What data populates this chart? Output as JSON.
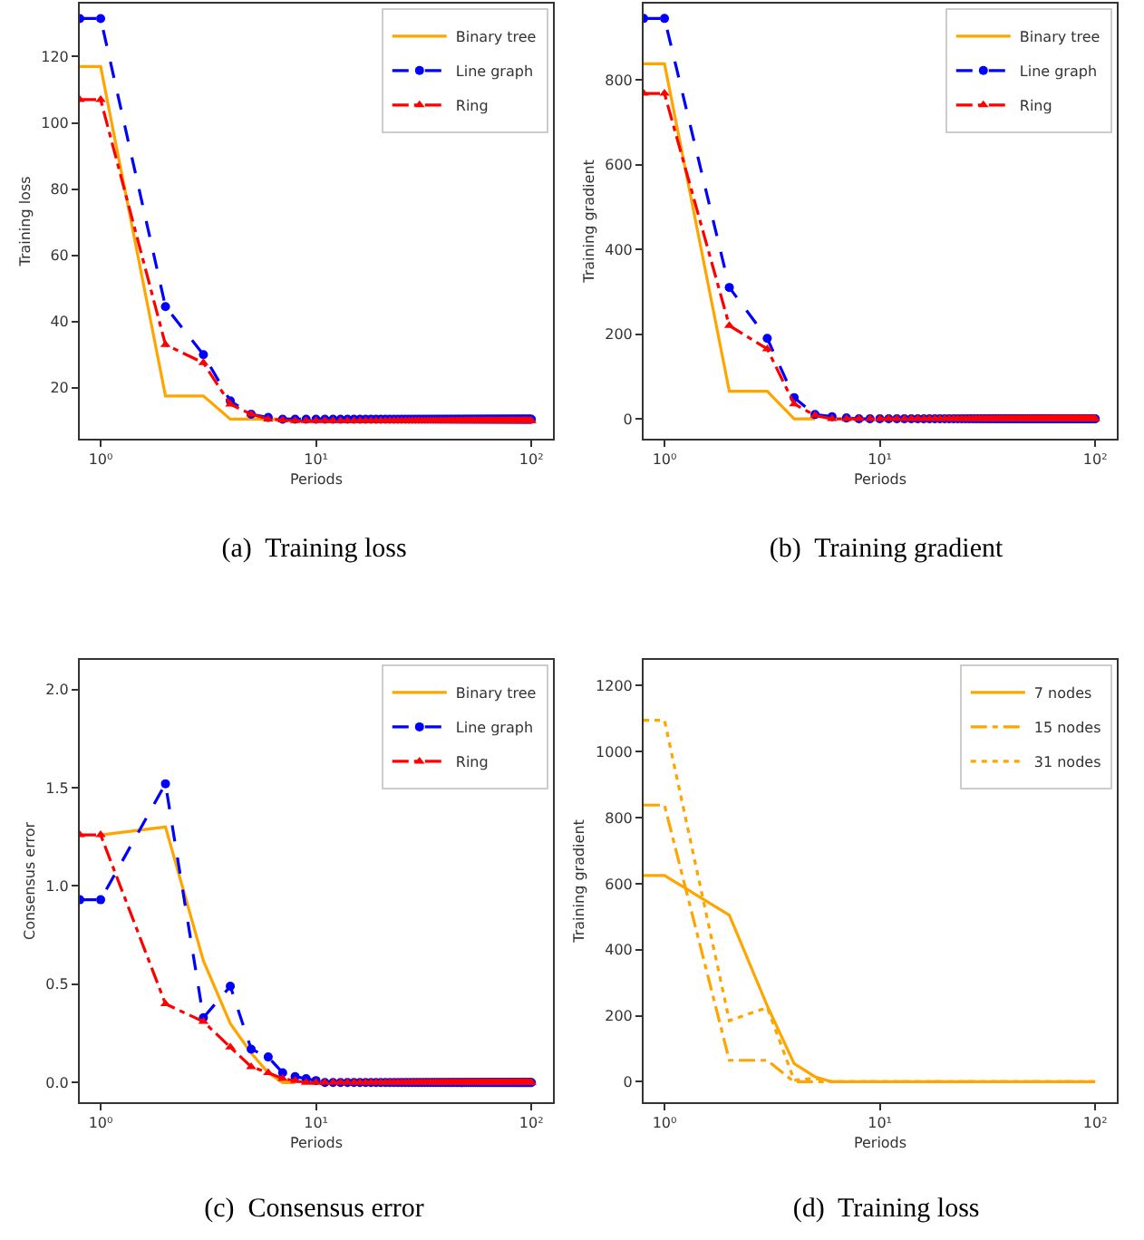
{
  "chart_data": [
    {
      "type": "line",
      "title": "(a)  Training loss",
      "xlabel": "Periods",
      "ylabel": "Training loss",
      "log": "x",
      "grid": false,
      "legend": "top right",
      "xlim": [
        0.8,
        126
      ],
      "xticks": [
        {
          "value": 1,
          "label": "10⁰"
        },
        {
          "value": 10,
          "label": "10¹"
        },
        {
          "value": 100,
          "label": "10²"
        }
      ],
      "ylim": [
        4.6,
        136
      ],
      "yticks": [
        20,
        40,
        60,
        80,
        100,
        120
      ],
      "x": [
        0.8,
        1,
        2,
        3,
        4,
        5,
        6,
        7,
        8,
        9,
        10,
        11,
        12,
        13,
        14,
        15,
        16,
        17,
        18,
        19,
        20,
        21,
        22,
        23,
        24,
        25,
        26,
        27,
        28,
        29,
        30,
        31,
        32,
        33,
        34,
        35,
        36,
        37,
        38,
        39,
        40,
        41,
        42,
        43,
        44,
        45,
        46,
        47,
        48,
        49,
        50,
        51,
        52,
        53,
        54,
        55,
        56,
        57,
        58,
        59,
        60,
        61,
        62,
        63,
        64,
        65,
        66,
        67,
        68,
        69,
        70,
        71,
        72,
        73,
        74,
        75,
        76,
        77,
        78,
        79,
        80,
        81,
        82,
        83,
        84,
        85,
        86,
        87,
        88,
        89,
        90,
        91,
        92,
        93,
        94,
        95,
        96,
        97,
        98,
        99,
        100
      ],
      "series": [
        {
          "name": "Binary tree",
          "color": "#ffa500",
          "line_style": "solid",
          "marker": "none",
          "x": [
            0.8,
            1,
            2,
            3,
            4,
            5,
            6,
            7,
            8
          ],
          "values": [
            117,
            117,
            17.5,
            17.5,
            10.5,
            10.5,
            10.5,
            10.5,
            10.5
          ]
        },
        {
          "name": "Line graph",
          "color": "#0000ff",
          "line_style": "dashed",
          "marker": "circle",
          "values": [
            131.5,
            131.5,
            44.5,
            30,
            16,
            12,
            11,
            10.5,
            10.5,
            10.5,
            10.5,
            10.5,
            10.5,
            10.5,
            10.5,
            10.5,
            10.5,
            10.5,
            10.5,
            10.5,
            10.5,
            10.5,
            10.5,
            10.5,
            10.5,
            10.5,
            10.5,
            10.5,
            10.5,
            10.5,
            10.5,
            10.5,
            10.5,
            10.5,
            10.5,
            10.5,
            10.5,
            10.5,
            10.5,
            10.5,
            10.5,
            10.5,
            10.5,
            10.5,
            10.5,
            10.5,
            10.5,
            10.5,
            10.5,
            10.5,
            10.5,
            10.5,
            10.5,
            10.5,
            10.5,
            10.5,
            10.5,
            10.5,
            10.5,
            10.5,
            10.5,
            10.5,
            10.5,
            10.5,
            10.5,
            10.5,
            10.5,
            10.5,
            10.5,
            10.5,
            10.5,
            10.5,
            10.5,
            10.5,
            10.5,
            10.5,
            10.5,
            10.5,
            10.5,
            10.5,
            10.5,
            10.5,
            10.5,
            10.5,
            10.5,
            10.5,
            10.5,
            10.5,
            10.5,
            10.5,
            10.5,
            10.5,
            10.5,
            10.5,
            10.5,
            10.5,
            10.5,
            10.5,
            10.5,
            10.5,
            10.5
          ]
        },
        {
          "name": "Ring",
          "color": "#ff0000",
          "line_style": "dashdot",
          "marker": "triangle",
          "values": [
            107,
            107,
            33,
            27.5,
            15,
            12,
            10.5,
            10.2,
            10,
            10,
            10,
            10,
            10,
            10,
            10,
            10,
            10,
            10,
            10,
            10,
            10,
            10,
            10,
            10,
            10,
            10,
            10,
            10,
            10,
            10,
            10,
            10,
            10,
            10,
            10,
            10,
            10,
            10,
            10,
            10,
            10,
            10,
            10,
            10,
            10,
            10,
            10,
            10,
            10,
            10,
            10,
            10,
            10,
            10,
            10,
            10,
            10,
            10,
            10,
            10,
            10,
            10,
            10,
            10,
            10,
            10,
            10,
            10,
            10,
            10,
            10,
            10,
            10,
            10,
            10,
            10,
            10,
            10,
            10,
            10,
            10,
            10,
            10,
            10,
            10,
            10,
            10,
            10,
            10,
            10,
            10,
            10,
            10,
            10,
            10,
            10,
            10,
            10,
            10,
            10,
            10
          ]
        }
      ]
    },
    {
      "type": "line",
      "title": "(b)  Training gradient",
      "xlabel": "Periods",
      "ylabel": "Training gradient",
      "log": "x",
      "grid": false,
      "legend": "top right",
      "xlim": [
        0.8,
        126
      ],
      "xticks": [
        {
          "value": 1,
          "label": "10⁰"
        },
        {
          "value": 10,
          "label": "10¹"
        },
        {
          "value": 100,
          "label": "10²"
        }
      ],
      "ylim": [
        -47,
        980
      ],
      "yticks": [
        0,
        200,
        400,
        600,
        800
      ],
      "x": [
        0.8,
        1,
        2,
        3,
        4,
        5,
        6,
        7,
        8,
        9,
        10,
        11,
        12,
        13,
        14,
        15,
        16,
        17,
        18,
        19,
        20,
        21,
        22,
        23,
        24,
        25,
        26,
        27,
        28,
        29,
        30,
        31,
        32,
        33,
        34,
        35,
        36,
        37,
        38,
        39,
        40,
        41,
        42,
        43,
        44,
        45,
        46,
        47,
        48,
        49,
        50,
        51,
        52,
        53,
        54,
        55,
        56,
        57,
        58,
        59,
        60,
        61,
        62,
        63,
        64,
        65,
        66,
        67,
        68,
        69,
        70,
        71,
        72,
        73,
        74,
        75,
        76,
        77,
        78,
        79,
        80,
        81,
        82,
        83,
        84,
        85,
        86,
        87,
        88,
        89,
        90,
        91,
        92,
        93,
        94,
        95,
        96,
        97,
        98,
        99,
        100
      ],
      "series": [
        {
          "name": "Binary tree",
          "color": "#ffa500",
          "line_style": "solid",
          "marker": "none",
          "x": [
            0.8,
            1,
            2,
            3,
            4,
            5
          ],
          "values": [
            838,
            838,
            65,
            65,
            0,
            0
          ]
        },
        {
          "name": "Line graph",
          "color": "#0000ff",
          "line_style": "dashed",
          "marker": "circle",
          "values": [
            945,
            945,
            310,
            190,
            50,
            10,
            5,
            2,
            0,
            0,
            0,
            0,
            0,
            0,
            0,
            0,
            0,
            0,
            0,
            0,
            0,
            0,
            0,
            0,
            0,
            0,
            0,
            0,
            0,
            0,
            0,
            0,
            0,
            0,
            0,
            0,
            0,
            0,
            0,
            0,
            0,
            0,
            0,
            0,
            0,
            0,
            0,
            0,
            0,
            0,
            0,
            0,
            0,
            0,
            0,
            0,
            0,
            0,
            0,
            0,
            0,
            0,
            0,
            0,
            0,
            0,
            0,
            0,
            0,
            0,
            0,
            0,
            0,
            0,
            0,
            0,
            0,
            0,
            0,
            0,
            0,
            0,
            0,
            0,
            0,
            0,
            0,
            0,
            0,
            0,
            0,
            0,
            0,
            0,
            0,
            0,
            0,
            0,
            0,
            0,
            0
          ]
        },
        {
          "name": "Ring",
          "color": "#ff0000",
          "line_style": "dashdot",
          "marker": "triangle",
          "values": [
            768,
            768,
            220,
            165,
            35,
            8,
            0,
            0,
            0,
            0,
            0,
            0,
            0,
            0,
            0,
            0,
            0,
            0,
            0,
            0,
            0,
            0,
            0,
            0,
            0,
            0,
            0,
            0,
            0,
            0,
            0,
            0,
            0,
            0,
            0,
            0,
            0,
            0,
            0,
            0,
            0,
            0,
            0,
            0,
            0,
            0,
            0,
            0,
            0,
            0,
            0,
            0,
            0,
            0,
            0,
            0,
            0,
            0,
            0,
            0,
            0,
            0,
            0,
            0,
            0,
            0,
            0,
            0,
            0,
            0,
            0,
            0,
            0,
            0,
            0,
            0,
            0,
            0,
            0,
            0,
            0,
            0,
            0,
            0,
            0,
            0,
            0,
            0,
            0,
            0,
            0,
            0,
            0,
            0,
            0,
            0,
            0,
            0,
            0,
            0,
            0
          ]
        }
      ]
    },
    {
      "type": "line",
      "title": "(c)  Consensus error",
      "xlabel": "Periods",
      "ylabel": "Consensus error",
      "log": "x",
      "grid": false,
      "legend": "top right",
      "xlim": [
        0.8,
        126
      ],
      "xticks": [
        {
          "value": 1,
          "label": "10⁰"
        },
        {
          "value": 10,
          "label": "10¹"
        },
        {
          "value": 100,
          "label": "10²"
        }
      ],
      "ylim": [
        -0.1,
        2.15
      ],
      "yticks": [
        {
          "value": 0,
          "label": "0.0"
        },
        {
          "value": 0.5,
          "label": "0.5"
        },
        {
          "value": 1,
          "label": "1.0"
        },
        {
          "value": 1.5,
          "label": "1.5"
        },
        {
          "value": 2,
          "label": "2.0"
        }
      ],
      "x": [
        0.8,
        1,
        2,
        3,
        4,
        5,
        6,
        7,
        8,
        9,
        10,
        11,
        12,
        13,
        14,
        15,
        16,
        17,
        18,
        19,
        20,
        21,
        22,
        23,
        24,
        25,
        26,
        27,
        28,
        29,
        30,
        31,
        32,
        33,
        34,
        35,
        36,
        37,
        38,
        39,
        40,
        41,
        42,
        43,
        44,
        45,
        46,
        47,
        48,
        49,
        50,
        51,
        52,
        53,
        54,
        55,
        56,
        57,
        58,
        59,
        60,
        61,
        62,
        63,
        64,
        65,
        66,
        67,
        68,
        69,
        70,
        71,
        72,
        73,
        74,
        75,
        76,
        77,
        78,
        79,
        80,
        81,
        82,
        83,
        84,
        85,
        86,
        87,
        88,
        89,
        90,
        91,
        92,
        93,
        94,
        95,
        96,
        97,
        98,
        99,
        100
      ],
      "series": [
        {
          "name": "Binary tree",
          "color": "#ffa500",
          "line_style": "solid",
          "marker": "none",
          "x": [
            1,
            2,
            3,
            4,
            5,
            6,
            7,
            8
          ],
          "values": [
            1.26,
            1.3,
            0.62,
            0.3,
            0.15,
            0.05,
            0,
            0
          ]
        },
        {
          "name": "Line graph",
          "color": "#0000ff",
          "line_style": "dashed",
          "marker": "circle",
          "values": [
            0.93,
            0.93,
            1.52,
            0.33,
            0.49,
            0.17,
            0.13,
            0.05,
            0.03,
            0.02,
            0.01,
            0,
            0,
            0,
            0,
            0,
            0,
            0,
            0,
            0,
            0,
            0,
            0,
            0,
            0,
            0,
            0,
            0,
            0,
            0,
            0,
            0,
            0,
            0,
            0,
            0,
            0,
            0,
            0,
            0,
            0,
            0,
            0,
            0,
            0,
            0,
            0,
            0,
            0,
            0,
            0,
            0,
            0,
            0,
            0,
            0,
            0,
            0,
            0,
            0,
            0,
            0,
            0,
            0,
            0,
            0,
            0,
            0,
            0,
            0,
            0,
            0,
            0,
            0,
            0,
            0,
            0,
            0,
            0,
            0,
            0,
            0,
            0,
            0,
            0,
            0,
            0,
            0,
            0,
            0,
            0,
            0,
            0,
            0,
            0,
            0,
            0,
            0,
            0,
            0,
            0
          ]
        },
        {
          "name": "Ring",
          "color": "#ff0000",
          "line_style": "dashdot",
          "marker": "triangle",
          "values": [
            1.26,
            1.26,
            0.4,
            0.31,
            0.18,
            0.08,
            0.05,
            0.02,
            0.01,
            0,
            0,
            0,
            0,
            0,
            0,
            0,
            0,
            0,
            0,
            0,
            0,
            0,
            0,
            0,
            0,
            0,
            0,
            0,
            0,
            0,
            0,
            0,
            0,
            0,
            0,
            0,
            0,
            0,
            0,
            0,
            0,
            0,
            0,
            0,
            0,
            0,
            0,
            0,
            0,
            0,
            0,
            0,
            0,
            0,
            0,
            0,
            0,
            0,
            0,
            0,
            0,
            0,
            0,
            0,
            0,
            0,
            0,
            0,
            0,
            0,
            0,
            0,
            0,
            0,
            0,
            0,
            0,
            0,
            0,
            0,
            0,
            0,
            0,
            0,
            0,
            0,
            0,
            0,
            0,
            0,
            0,
            0,
            0,
            0,
            0,
            0,
            0,
            0,
            0,
            0,
            0
          ]
        }
      ]
    },
    {
      "type": "line",
      "title": "(d)  Training loss",
      "xlabel": "Periods",
      "ylabel": "Training gradient",
      "log": "x",
      "grid": false,
      "legend": "top right",
      "xlim": [
        0.8,
        126
      ],
      "xticks": [
        {
          "value": 1,
          "label": "10⁰"
        },
        {
          "value": 10,
          "label": "10¹"
        },
        {
          "value": 100,
          "label": "10²"
        }
      ],
      "ylim": [
        -62,
        1278
      ],
      "yticks": [
        0,
        200,
        400,
        600,
        800,
        1000,
        1200
      ],
      "x": [
        0.8,
        1,
        2,
        3,
        4,
        5,
        6,
        7,
        8,
        9,
        10,
        100
      ],
      "series": [
        {
          "name": "7 nodes",
          "color": "#ffa500",
          "line_style": "solid",
          "marker": "none",
          "values": [
            625,
            625,
            505,
            230,
            55,
            15,
            0,
            0,
            0,
            0,
            0,
            0
          ]
        },
        {
          "name": "15 nodes",
          "color": "#ffa500",
          "line_style": "dashdot",
          "marker": "none",
          "values": [
            838,
            838,
            65,
            65,
            0,
            0,
            0,
            0,
            0,
            0,
            0,
            0
          ]
        },
        {
          "name": "31 nodes",
          "color": "#ffa500",
          "line_style": "dotted",
          "marker": "none",
          "values": [
            1095,
            1095,
            185,
            225,
            5,
            10,
            0,
            0,
            0,
            0,
            0,
            0
          ]
        }
      ]
    }
  ]
}
